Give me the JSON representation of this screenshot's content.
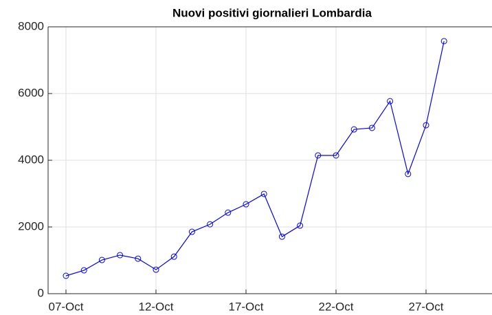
{
  "chart_data": {
    "type": "line",
    "title": "Nuovi positivi giornalieri Lombardia",
    "categories": [
      "07-Oct",
      null,
      null,
      null,
      null,
      "12-Oct",
      null,
      null,
      null,
      null,
      "17-Oct",
      null,
      null,
      null,
      null,
      "22-Oct",
      null,
      null,
      null,
      null,
      "27-Oct",
      null
    ],
    "series": [
      {
        "name": "Nuovi positivi",
        "color": "#0000ff",
        "values": [
          536,
          700,
          1010,
          1155,
          1050,
          720,
          1110,
          1855,
          2080,
          2430,
          2680,
          2990,
          1710,
          2040,
          4145,
          4145,
          4925,
          4970,
          5770,
          3590,
          5050,
          7570
        ]
      }
    ],
    "ylim": [
      0,
      8000
    ],
    "yticks": [
      0,
      2000,
      4000,
      6000,
      8000
    ],
    "grid": true
  }
}
